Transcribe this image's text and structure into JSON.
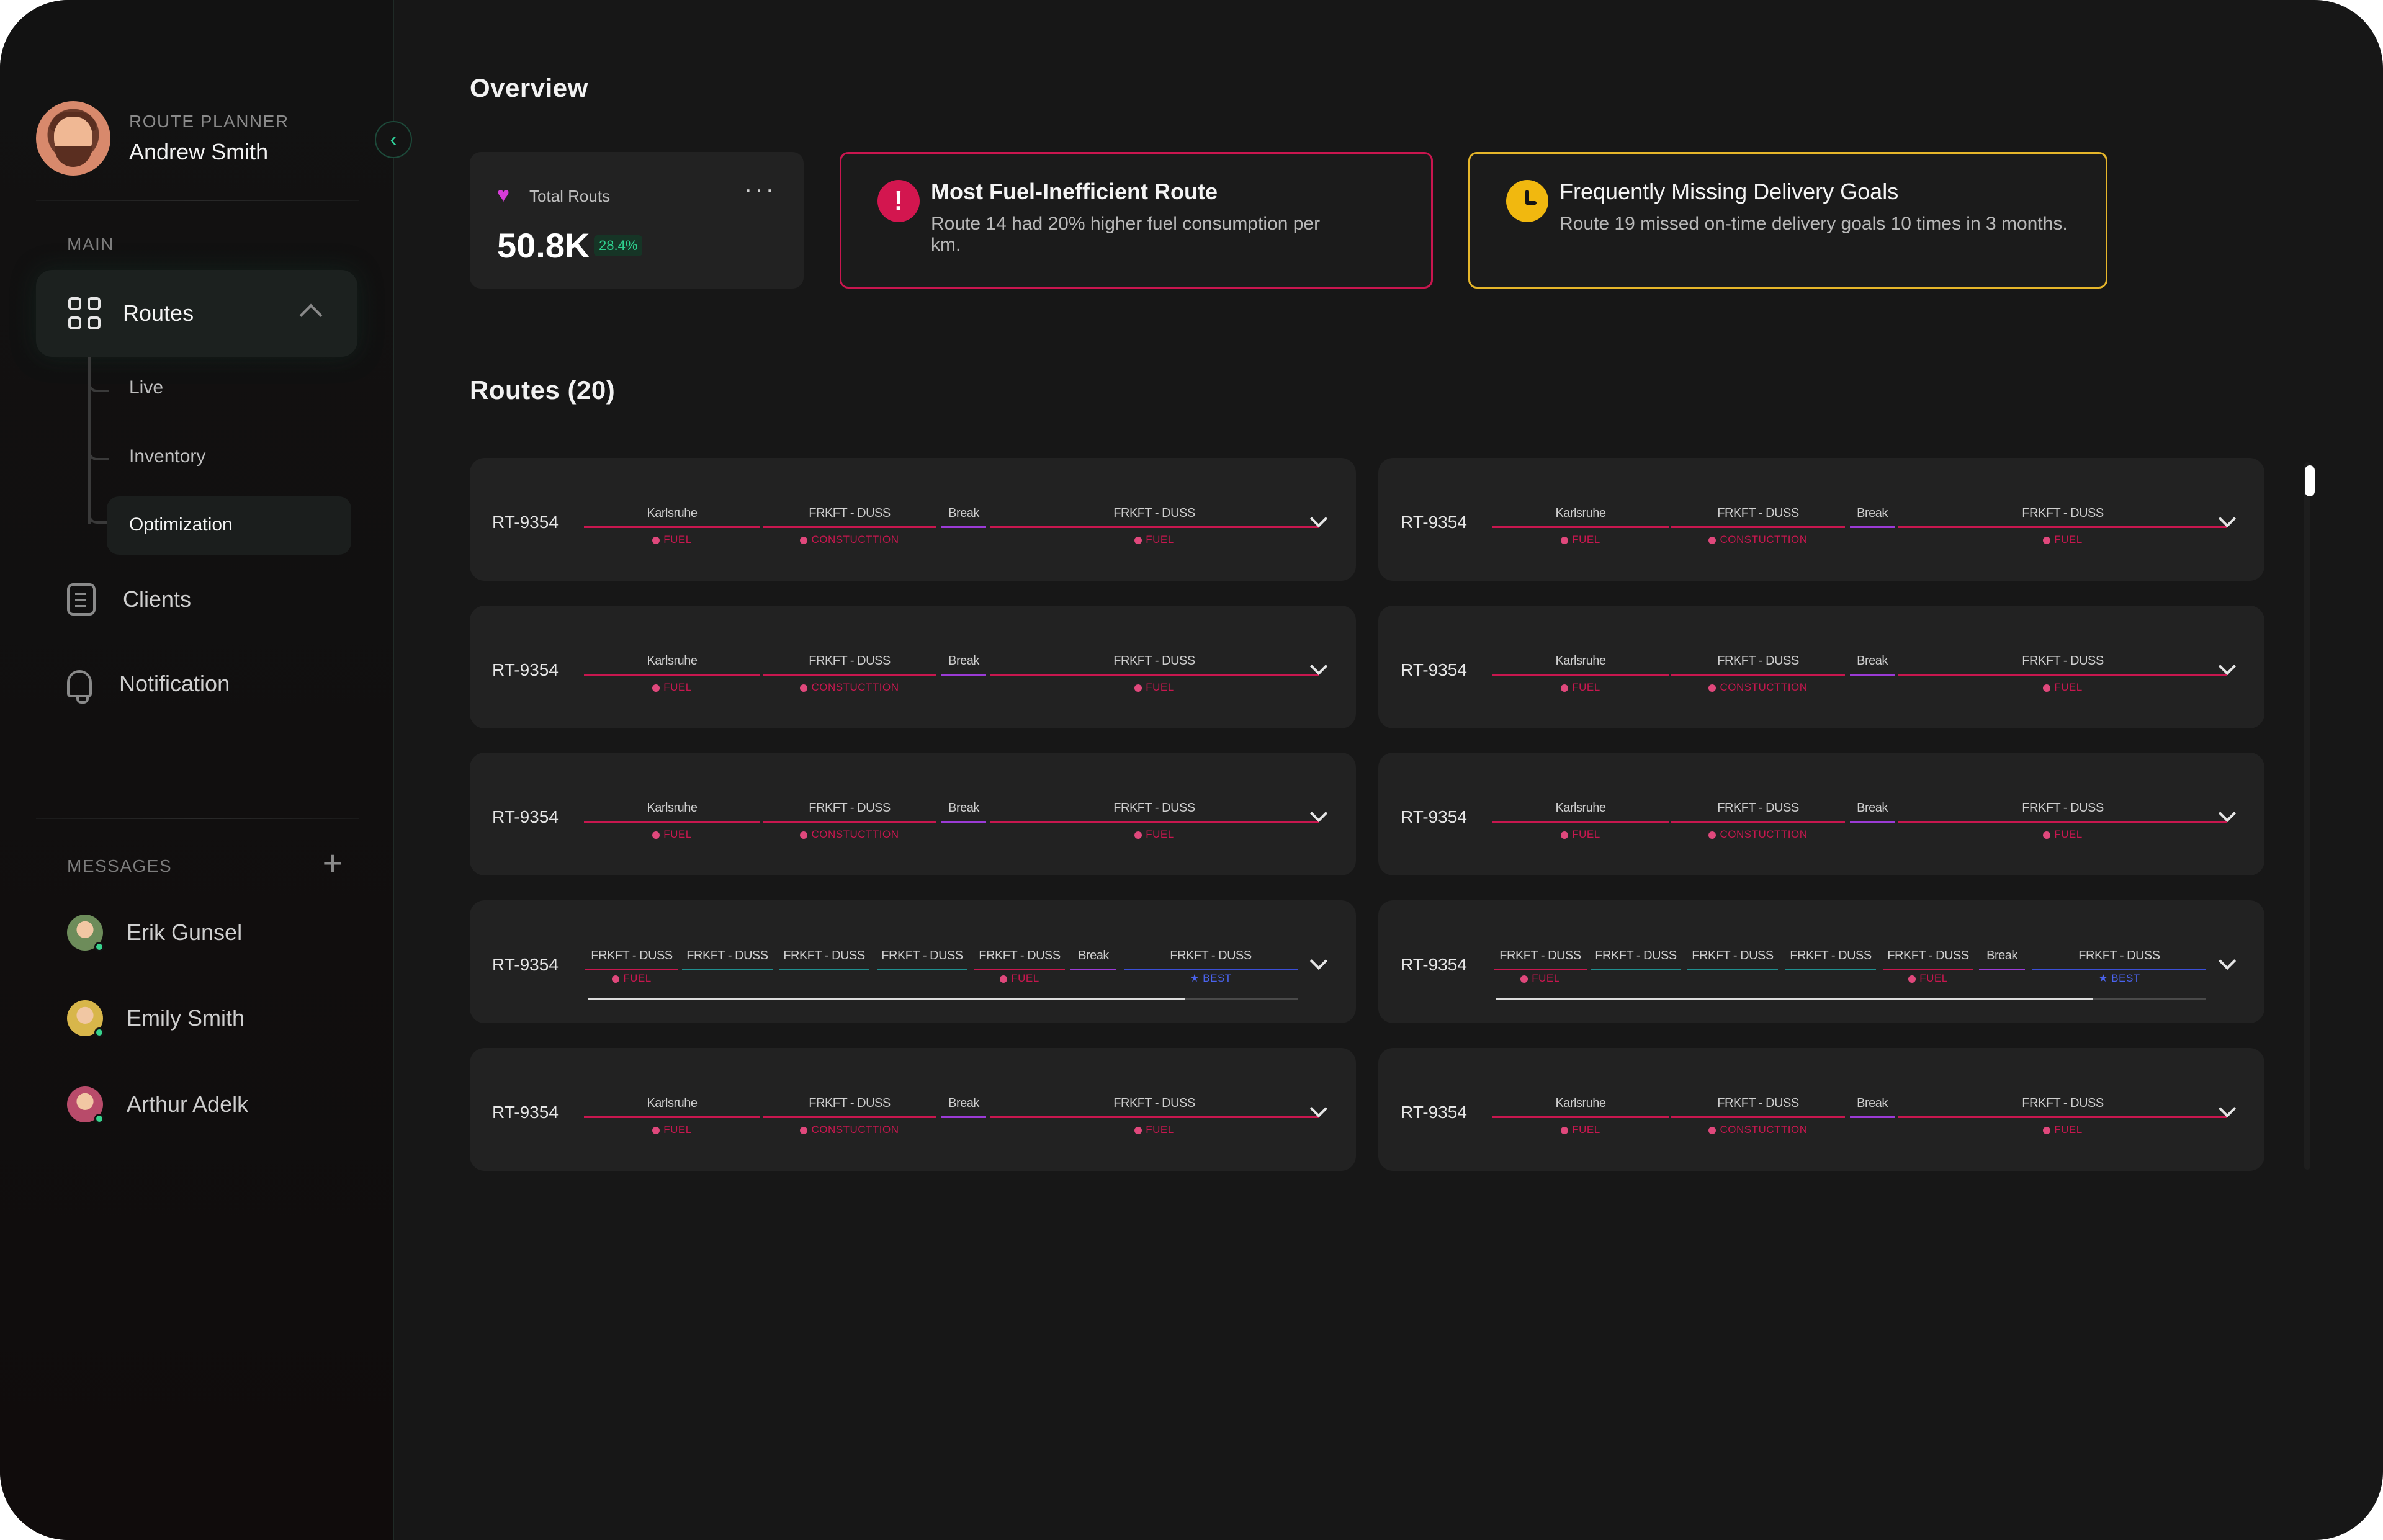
{
  "sidebar": {
    "role": "ROUTE PLANNER",
    "user_name": "Andrew Smith",
    "main_label": "MAIN",
    "routes_label": "Routes",
    "sub_items": [
      "Live",
      "Inventory",
      "Optimization"
    ],
    "clients_label": "Clients",
    "notification_label": "Notification",
    "messages_label": "MESSAGES",
    "messages": [
      "Erik Gunsel",
      "Emily Smith",
      "Arthur Adelk"
    ]
  },
  "overview": {
    "title": "Overview",
    "stat": {
      "label": "Total Routs",
      "value": "50.8K",
      "badge": "28.4%"
    },
    "alert_red": {
      "title": "Most Fuel-Inefficient Route",
      "body": "Route 14 had 20% higher fuel consumption per km."
    },
    "alert_yellow": {
      "title": "Frequently Missing Delivery Goals",
      "body": "Route 19 missed on-time delivery goals 10 times in 3 months."
    }
  },
  "routes": {
    "title": "Routes (20)",
    "route_id": "RT-9354",
    "seg_karlsruhe": "Karlsruhe",
    "seg_frkft": "FRKFT - DUSS",
    "seg_break": "Break",
    "tag_fuel": "FUEL",
    "tag_construction": "CONSTUCTTION",
    "tag_best": "BEST"
  },
  "colors": {
    "accent_green": "#2fd19a",
    "alert_red": "#c9164f",
    "alert_yellow": "#e6b62a",
    "segment_red": "#c8174f",
    "segment_purple": "#9b3bd6",
    "segment_teal": "#1f8f8f",
    "segment_blue": "#3a4fd6"
  }
}
